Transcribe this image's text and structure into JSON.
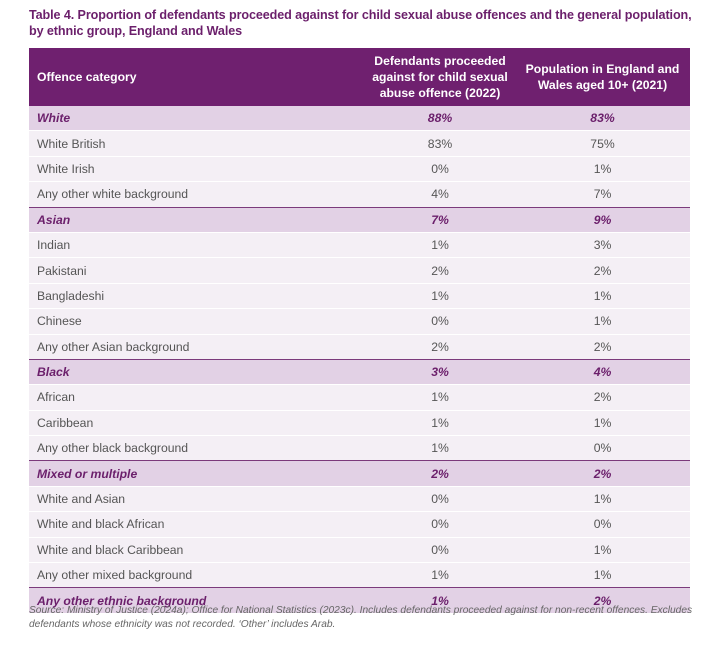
{
  "title": "Table 4. Proportion of defendants proceeded against for child sexual abuse offences and the general population, by ethnic group, England and Wales",
  "table": {
    "headers": [
      "Offence category",
      "Defendants proceeded against for child sexual abuse offence (2022)",
      "Population in England and Wales aged 10+ (2021)"
    ],
    "rows": [
      {
        "group": true,
        "cells": [
          "White",
          "88%",
          "83%"
        ]
      },
      {
        "group": false,
        "cells": [
          "White British",
          "83%",
          "75%"
        ]
      },
      {
        "group": false,
        "cells": [
          "White Irish",
          "0%",
          "1%"
        ]
      },
      {
        "group": false,
        "cells": [
          "Any other white background",
          "4%",
          "7%"
        ]
      },
      {
        "group": true,
        "cells": [
          "Asian",
          "7%",
          "9%"
        ]
      },
      {
        "group": false,
        "cells": [
          "Indian",
          "1%",
          "3%"
        ]
      },
      {
        "group": false,
        "cells": [
          "Pakistani",
          "2%",
          "2%"
        ]
      },
      {
        "group": false,
        "cells": [
          "Bangladeshi",
          "1%",
          "1%"
        ]
      },
      {
        "group": false,
        "cells": [
          "Chinese",
          "0%",
          "1%"
        ]
      },
      {
        "group": false,
        "cells": [
          "Any other Asian background",
          "2%",
          "2%"
        ]
      },
      {
        "group": true,
        "cells": [
          "Black",
          "3%",
          "4%"
        ]
      },
      {
        "group": false,
        "cells": [
          "African",
          "1%",
          "2%"
        ]
      },
      {
        "group": false,
        "cells": [
          "Caribbean",
          "1%",
          "1%"
        ]
      },
      {
        "group": false,
        "cells": [
          "Any other black background",
          "1%",
          "0%"
        ]
      },
      {
        "group": true,
        "cells": [
          "Mixed or multiple",
          "2%",
          "2%"
        ]
      },
      {
        "group": false,
        "cells": [
          "White and Asian",
          "0%",
          "1%"
        ]
      },
      {
        "group": false,
        "cells": [
          "White and black African",
          "0%",
          "0%"
        ]
      },
      {
        "group": false,
        "cells": [
          "White and black Caribbean",
          "0%",
          "1%"
        ]
      },
      {
        "group": false,
        "cells": [
          "Any other mixed background",
          "1%",
          "1%"
        ]
      },
      {
        "group": true,
        "cells": [
          "Any other ethnic background",
          "1%",
          "2%"
        ]
      }
    ]
  },
  "footnote": "Source: Ministry of Justice (2024a); Office for National Statistics (2023c). Includes defendants proceeded against for non-recent offences. Excludes defendants whose ethnicity was not recorded. ‘Other’ includes Arab.",
  "colors": {
    "header": "#6f206f",
    "group_row": "#e2d1e5",
    "row": "#f4eff5",
    "accent_text": "#6b1f6b"
  }
}
